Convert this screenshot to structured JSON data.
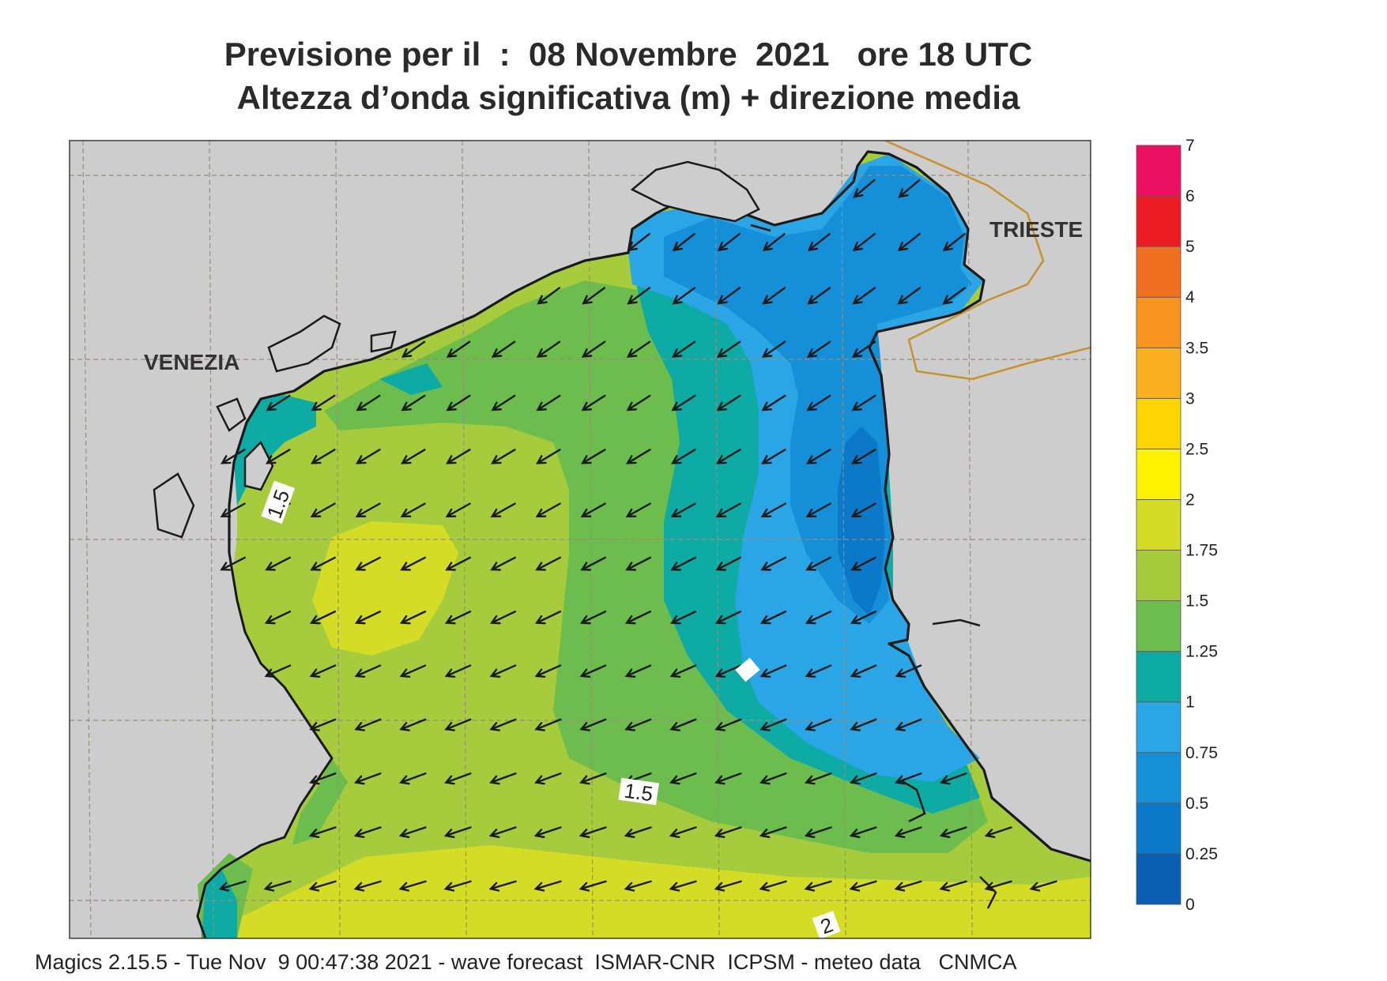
{
  "header": {
    "line1": "Previsione per il  :  08 Novembre  2021   ore 18 UTC",
    "line2": "Altezza d’onda significativa (m) + direzione media"
  },
  "places": {
    "venezia": "VENEZIA",
    "trieste": "TRIESTE"
  },
  "contour_labels": [
    "1.5",
    "1.5",
    "2"
  ],
  "colorbar": {
    "levels": [
      "0",
      "0.25",
      "0.5",
      "0.75",
      "1",
      "1.25",
      "1.5",
      "1.75",
      "2",
      "2.5",
      "3",
      "3.5",
      "4",
      "5",
      "6",
      "7"
    ],
    "colors": [
      "#0a5fb5",
      "#0b78c8",
      "#1590d8",
      "#2aa6e6",
      "#0eaaa4",
      "#6cbd4e",
      "#a6cb3c",
      "#d5dc26",
      "#fff200",
      "#ffd400",
      "#f9b020",
      "#f7931e",
      "#f26f21",
      "#ed1c24",
      "#ee1162"
    ]
  },
  "colors": {
    "land": "#cdcdcd",
    "coast": "#1a1a1a",
    "border": "#c8922a",
    "grid": "#9a8d7a",
    "arrow": "#1a1a1a"
  },
  "footer": "Magics 2.15.5 - Tue Nov  9 00:47:38 2021 - wave forecast  ISMAR-CNR  ICPSM - meteo data   CNMCA"
}
